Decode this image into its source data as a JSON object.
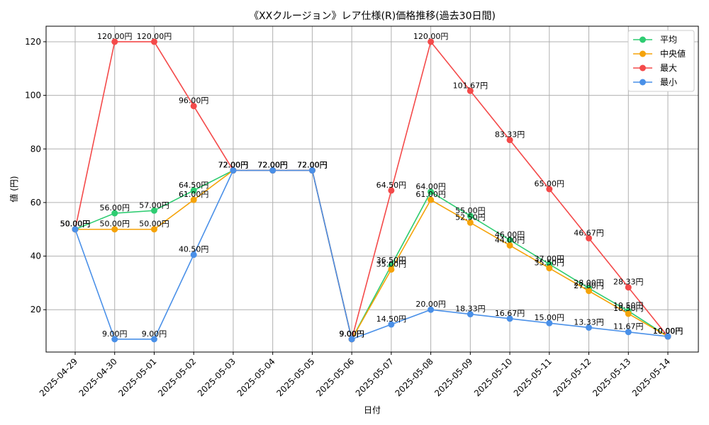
{
  "chart_data": {
    "type": "line",
    "title": "《XXクルージョン》レア仕様(R)価格推移(過去30日間)",
    "xlabel": "日付",
    "ylabel": "値 (円)",
    "x": [
      "2025-04-29",
      "2025-04-30",
      "2025-05-01",
      "2025-05-02",
      "2025-05-03",
      "2025-05-04",
      "2025-05-05",
      "2025-05-06",
      "2025-05-07",
      "2025-05-08",
      "2025-05-09",
      "2025-05-10",
      "2025-05-11",
      "2025-05-12",
      "2025-05-13",
      "2025-05-14"
    ],
    "ylim": [
      4.2,
      125.8
    ],
    "yticks": [
      20,
      40,
      60,
      80,
      100,
      120
    ],
    "grid": true,
    "legend_position": "top-right",
    "series": [
      {
        "name": "平均",
        "color": "#2ecc71",
        "values": [
          50,
          56,
          57,
          64.5,
          72,
          72,
          72,
          9,
          36.5,
          64,
          55,
          46,
          37,
          28,
          19.5,
          10
        ],
        "labels": [
          "50.00円",
          "56.00円",
          "57.00円",
          "64.50円",
          "72.00円",
          "72.00円",
          "72.00円",
          "9.00円",
          "36.50円",
          "64.00円",
          "55.00円",
          "46.00円",
          "37.00円",
          "28.00円",
          "19.50円",
          "10.00円"
        ]
      },
      {
        "name": "中央値",
        "color": "#f5a30a",
        "values": [
          50,
          50,
          50,
          61,
          72,
          72,
          72,
          9,
          35,
          61,
          52.5,
          44,
          35.5,
          27,
          18.5,
          10
        ],
        "labels": [
          "50.00円",
          "50.00円",
          "50.00円",
          "61.00円",
          "72.00円",
          "72.00円",
          "72.00円",
          "9.00円",
          "35.00円",
          "61.00円",
          "52.50円",
          "44.00円",
          "35.50円",
          "27.00円",
          "18.50円",
          "10.00円"
        ]
      },
      {
        "name": "最大",
        "color": "#f44a4a",
        "values": [
          50,
          120,
          120,
          96,
          72,
          72,
          72,
          9,
          64.5,
          120,
          101.67,
          83.33,
          65,
          46.67,
          28.33,
          10
        ],
        "labels": [
          "50.00円",
          "120.00円",
          "120.00円",
          "96.00円",
          "72.00円",
          "72.00円",
          "72.00円",
          "9.00円",
          "64.50円",
          "120.00円",
          "101.67円",
          "83.33円",
          "65.00円",
          "46.67円",
          "28.33円",
          "10.00円"
        ]
      },
      {
        "name": "最小",
        "color": "#4a90e8",
        "values": [
          50,
          9,
          9,
          40.5,
          72,
          72,
          72,
          9,
          14.5,
          20,
          18.33,
          16.67,
          15,
          13.33,
          11.67,
          10
        ],
        "labels": [
          "50.00円",
          "9.00円",
          "9.00円",
          "40.50円",
          "72.00円",
          "72.00円",
          "72.00円",
          "9.00円",
          "14.50円",
          "20.00円",
          "18.33円",
          "16.67円",
          "15.00円",
          "13.33円",
          "11.67円",
          "10.00円"
        ]
      }
    ]
  }
}
